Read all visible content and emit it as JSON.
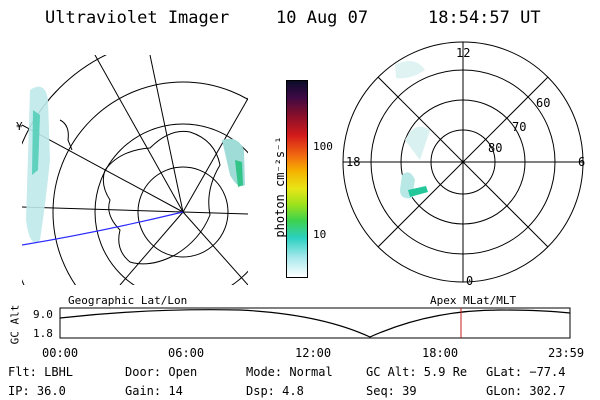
{
  "header": {
    "instrument": "Ultraviolet Imager",
    "date": "10 Aug 07",
    "time": "18:54:57 UT"
  },
  "colorbar": {
    "unit_label": "photon cm⁻²s⁻¹",
    "ticks": [
      "100",
      "10"
    ]
  },
  "geo_map": {
    "label": "Geographic Lat/Lon",
    "side_mark": "¥"
  },
  "polar_plot": {
    "label": "Apex MLat/MLT",
    "mlt_labels": {
      "top": "12",
      "left": "18",
      "right": "6",
      "bottom": "0"
    },
    "lat_labels": [
      "60",
      "70",
      "80"
    ]
  },
  "altitude_plot": {
    "ylabel": "GC Alt",
    "ytick_top": "9.0",
    "ytick_bottom": "1.8",
    "xticks": [
      "00:00",
      "06:00",
      "12:00",
      "18:00",
      "23:59"
    ],
    "current_time_marker": "18:54:57"
  },
  "info": {
    "filter": "Flt: LBHL",
    "ip": "IP: 36.0",
    "door": "Door: Open",
    "gain": "Gain: 14",
    "mode": "Mode: Normal",
    "dsp": "Dsp:    4.8",
    "gcalt": "GC Alt: 5.9 Re",
    "seq": "Seq: 39",
    "glat": "GLat: −77.4",
    "glon": "GLon: 302.7"
  },
  "colors": {
    "blue_line": "#2b2bff",
    "marker_red": "#c81e1e"
  }
}
